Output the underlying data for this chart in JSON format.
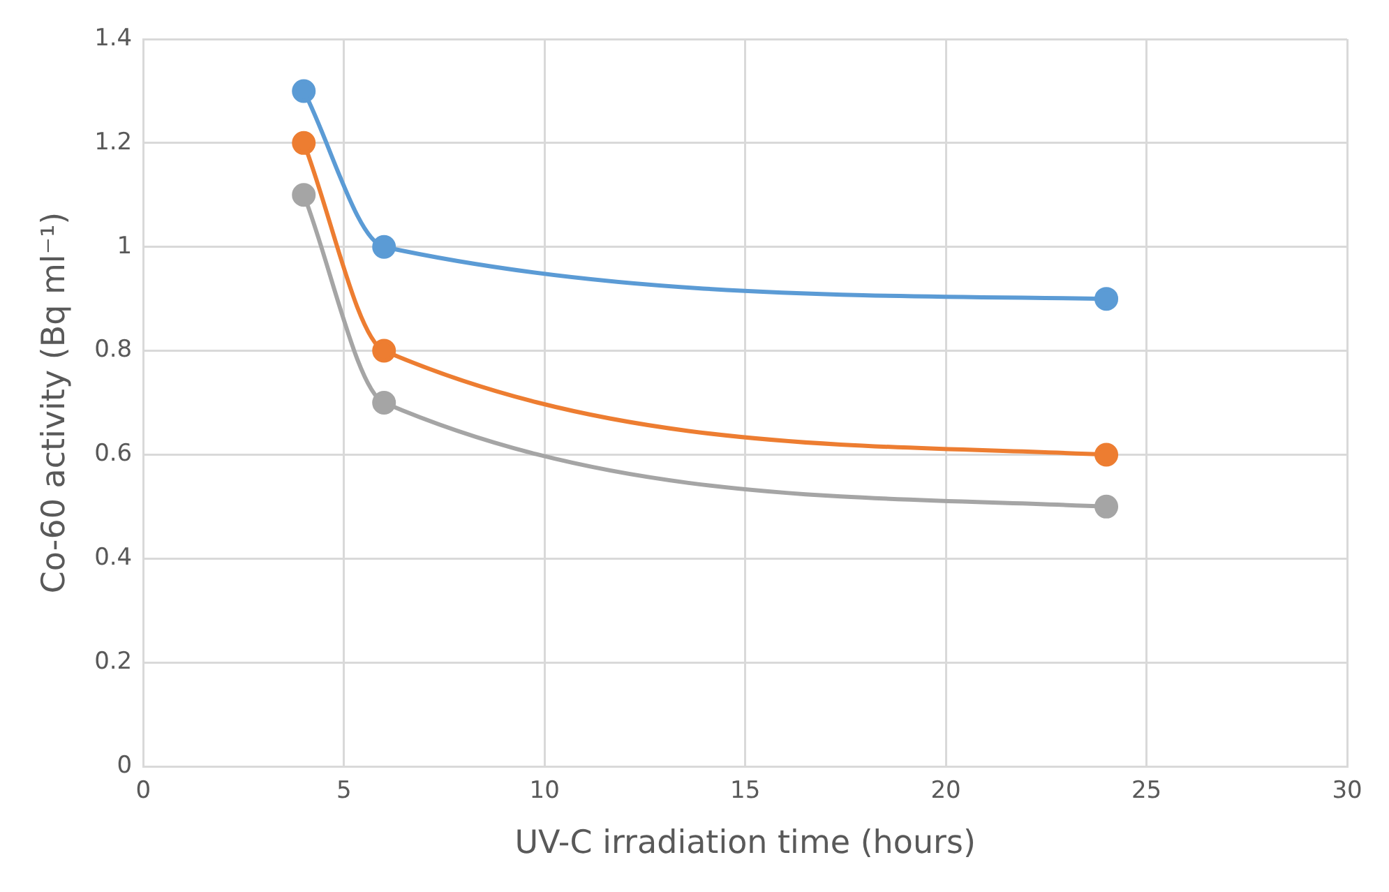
{
  "chart_data": {
    "type": "line",
    "xlabel": "UV-C irradiation time (hours)",
    "ylabel": "Co-60 activity (Bq ml⁻¹)",
    "x": [
      4,
      6,
      24
    ],
    "series": [
      {
        "color": "#5b9bd5",
        "values": [
          1.3,
          1.0,
          0.9
        ]
      },
      {
        "color": "#ed7d31",
        "values": [
          1.2,
          0.8,
          0.6
        ]
      },
      {
        "color": "#a5a5a5",
        "values": [
          1.1,
          0.7,
          0.5
        ]
      }
    ],
    "xlim": [
      0,
      30
    ],
    "xticks": [
      0,
      5,
      10,
      15,
      20,
      25,
      30
    ],
    "ylim": [
      0,
      1.4
    ],
    "yticks": [
      0,
      0.2,
      0.4,
      0.6,
      0.8,
      1,
      1.2,
      1.4
    ],
    "grid": true,
    "legend": false,
    "marker": "circle",
    "line_style": "solid"
  }
}
